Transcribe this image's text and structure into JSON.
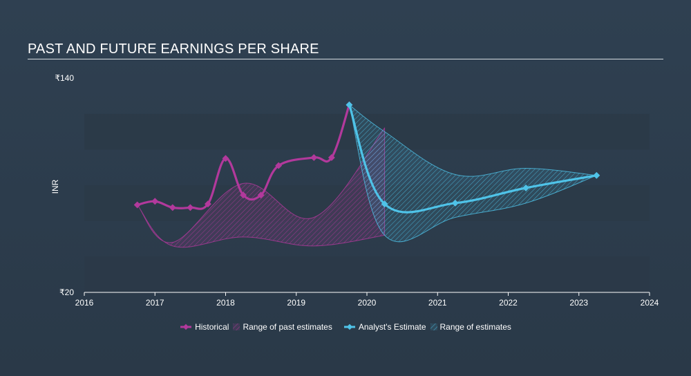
{
  "title": "PAST AND FUTURE EARNINGS PER SHARE",
  "legend": {
    "historical": "Historical",
    "past_range": "Range of past estimates",
    "analyst": "Analyst's Estimate",
    "future_range": "Range of estimates"
  },
  "colors": {
    "historical": "#b2399c",
    "analyst": "#4fc3e8",
    "band_dark": "#2b3a48",
    "band_light": "#34495b",
    "axis": "#ffffff"
  },
  "chart_data": {
    "type": "line",
    "xlabel": "",
    "ylabel": "INR",
    "xlim": [
      2016,
      2024
    ],
    "ylim": [
      20,
      140
    ],
    "y_tick_labels": [
      "₹20",
      "₹140"
    ],
    "x_tick_labels": [
      "2016",
      "2017",
      "2018",
      "2019",
      "2020",
      "2021",
      "2022",
      "2023",
      "2024"
    ],
    "series": [
      {
        "name": "Historical",
        "x": [
          2016.75,
          2017.0,
          2017.25,
          2017.5,
          2017.75,
          2018.0,
          2018.25,
          2018.5,
          2018.75,
          2019.25,
          2019.5,
          2019.75
        ],
        "y": [
          69,
          71,
          67.5,
          67.5,
          69.5,
          95,
          74.5,
          74.5,
          91,
          95.5,
          95.5,
          125
        ],
        "markers": [
          true,
          true,
          true,
          true,
          true,
          true,
          true,
          true,
          true,
          true,
          true,
          true
        ]
      },
      {
        "name": "Analyst's Estimate",
        "x": [
          2019.75,
          2020.25,
          2021.25,
          2022.25,
          2023.25
        ],
        "y": [
          125,
          69.5,
          70,
          78.5,
          85.5
        ],
        "markers": [
          true,
          true,
          true,
          true,
          true
        ]
      }
    ],
    "past_estimate_range": {
      "name": "Range of past estimates",
      "x": [
        2016.75,
        2017.25,
        2018.25,
        2019.25,
        2020.25
      ],
      "low": [
        69,
        46,
        51,
        46,
        52
      ],
      "high": [
        69,
        48,
        81,
        62,
        112
      ]
    },
    "future_estimate_range": {
      "name": "Range of estimates",
      "x": [
        2019.75,
        2020.25,
        2021.25,
        2022.25,
        2023.25
      ],
      "low": [
        125,
        52,
        62,
        70,
        85.5
      ],
      "high": [
        125,
        110,
        86,
        89.5,
        85.5
      ]
    }
  }
}
